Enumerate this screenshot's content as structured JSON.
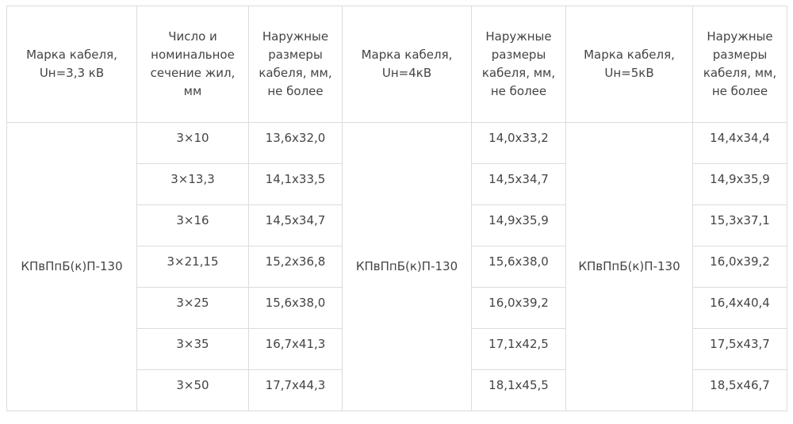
{
  "headers": [
    "Марка кабеля, Uн=3,3 кВ",
    "Число и номинальное сечение жил, мм",
    "Наружные размеры кабеля, мм, не более",
    "Марка кабеля, Uн=4кВ",
    "Наружные размеры кабеля, мм, не более",
    "Марка кабеля, Uн=5кВ",
    "Наружные размеры кабеля, мм, не более"
  ],
  "brand_3_3kv": "КПвПпБ(к)П-130",
  "brand_4kv": "КПвПпБ(к)П-130",
  "brand_5kv": "КПвПпБ(к)П-130",
  "rows": [
    {
      "section": "3×10",
      "size_3_3kv": "13,6x32,0",
      "size_4kv": "14,0x33,2",
      "size_5kv": "14,4x34,4"
    },
    {
      "section": "3×13,3",
      "size_3_3kv": "14,1x33,5",
      "size_4kv": "14,5x34,7",
      "size_5kv": "14,9x35,9"
    },
    {
      "section": "3×16",
      "size_3_3kv": "14,5x34,7",
      "size_4kv": "14,9x35,9",
      "size_5kv": "15,3x37,1"
    },
    {
      "section": "3×21,15",
      "size_3_3kv": "15,2x36,8",
      "size_4kv": "15,6x38,0",
      "size_5kv": "16,0x39,2"
    },
    {
      "section": "3×25",
      "size_3_3kv": "15,6x38,0",
      "size_4kv": "16,0x39,2",
      "size_5kv": "16,4x40,4"
    },
    {
      "section": "3×35",
      "size_3_3kv": "16,7x41,3",
      "size_4kv": "17,1x42,5",
      "size_5kv": "17,5x43,7"
    },
    {
      "section": "3×50",
      "size_3_3kv": "17,7x44,3",
      "size_4kv": "18,1x45,5",
      "size_5kv": "18,5x46,7"
    }
  ]
}
